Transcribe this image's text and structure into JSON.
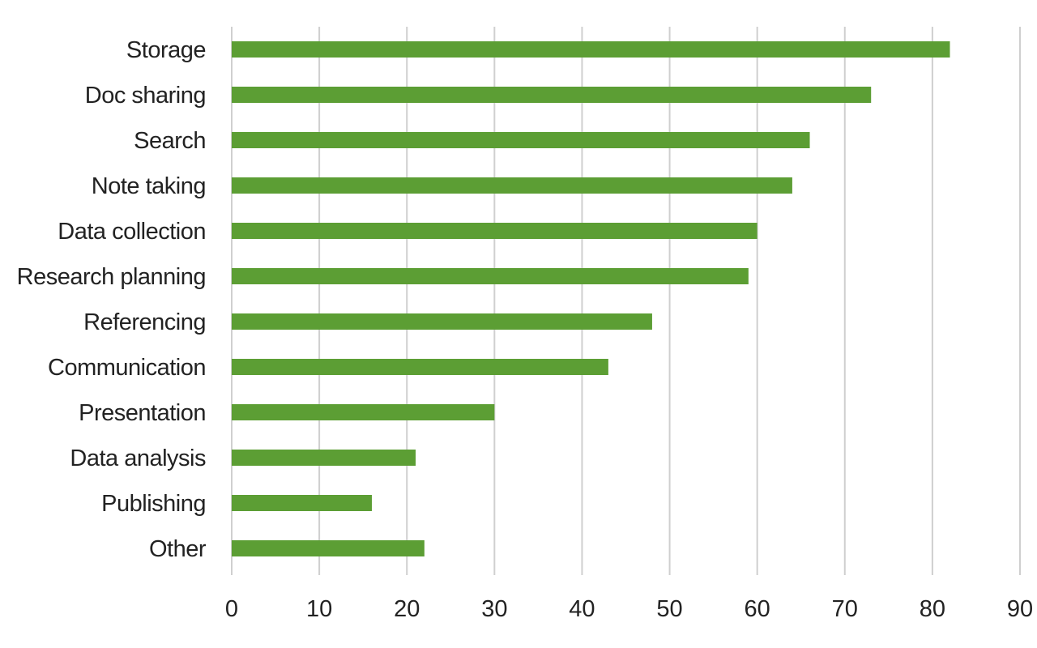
{
  "chart_data": {
    "type": "bar",
    "orientation": "horizontal",
    "title": "",
    "xlabel": "",
    "ylabel": "",
    "categories": [
      "Storage",
      "Doc sharing",
      "Search",
      "Note taking",
      "Data collection",
      "Research planning",
      "Referencing",
      "Communication",
      "Presentation",
      "Data analysis",
      "Publishing",
      "Other"
    ],
    "values": [
      82,
      73,
      66,
      64,
      60,
      59,
      48,
      43,
      30,
      21,
      16,
      22
    ],
    "xlim": [
      0,
      90
    ],
    "xticks": [
      "0",
      "10",
      "20",
      "30",
      "40",
      "50",
      "60",
      "70",
      "80",
      "90"
    ],
    "grid": "vertical",
    "bar_color": "#5c9e34"
  }
}
